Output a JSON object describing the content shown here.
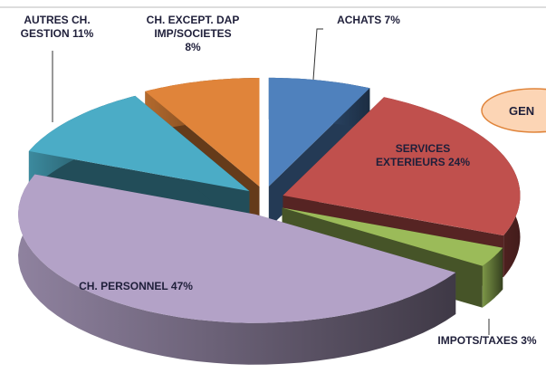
{
  "chart_data": {
    "type": "pie3d",
    "categories": [
      "ACHATS",
      "SERVICES EXTERIEURS",
      "IMPOTS/TAXES",
      "CH. PERSONNEL",
      "AUTRES CH. GESTION",
      "CH. EXCEPT. DAP IMP/SOCIETES"
    ],
    "values": [
      7,
      24,
      3,
      47,
      11,
      8
    ],
    "value_labels": [
      "7%",
      "24%",
      "3%",
      "47%",
      "11%",
      "8%"
    ],
    "colors": [
      "#4f81bd",
      "#c0504d",
      "#9bbb59",
      "#b3a2c7",
      "#4bacc6",
      "#e0843a"
    ],
    "annotation": "GEN"
  }
}
